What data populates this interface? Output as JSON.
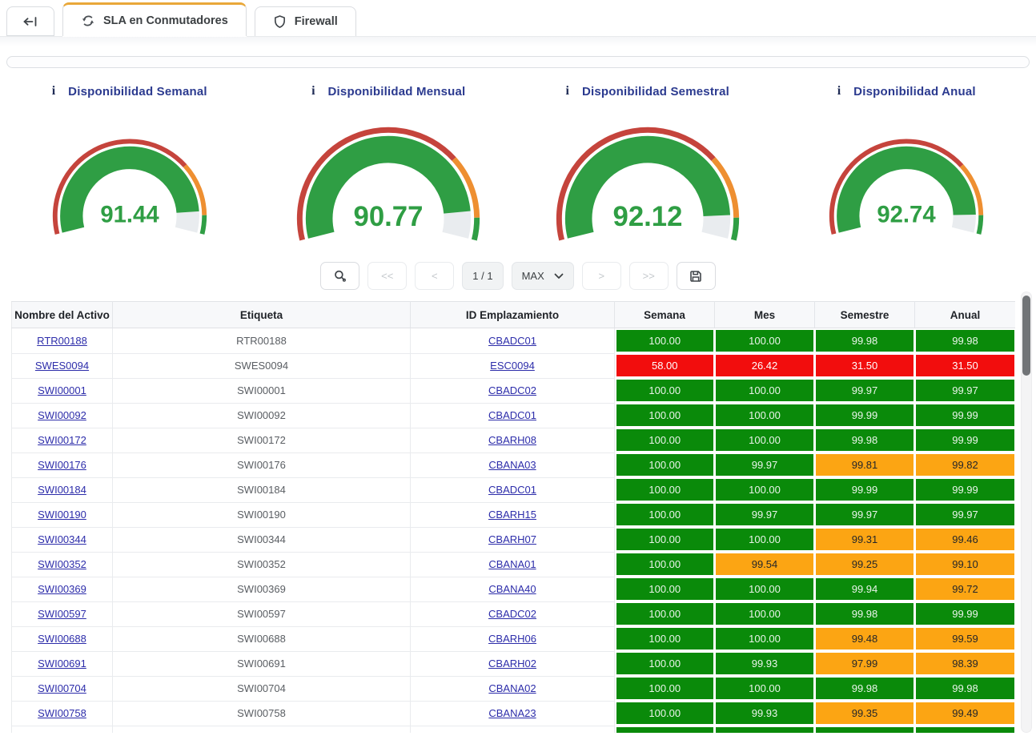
{
  "tabs": {
    "items": [
      {
        "label": "SLA en Conmutadores",
        "active": true
      },
      {
        "label": "Firewall",
        "active": false
      }
    ]
  },
  "icons": {
    "info_glyph": "i"
  },
  "colors": {
    "cell_green": "#0a8a0a",
    "cell_red": "#f20d0d",
    "cell_orange": "#fca513",
    "gauge_green": "#2f9e44",
    "gauge_red": "#c5443c",
    "gauge_orange": "#ee8f31",
    "gauge_rest": "#e9ecef",
    "tab_accent": "#e9a83a",
    "link": "#2d2daa",
    "title": "#2b3a8f"
  },
  "chart_data": [
    {
      "type": "gauge",
      "title": "Disponibilidad Semanal",
      "value": 91.44,
      "min": 0,
      "max": 100,
      "bands": [
        {
          "from": 0,
          "to": 73,
          "color": "#c5443c"
        },
        {
          "from": 73,
          "to": 93,
          "color": "#ee8f31"
        },
        {
          "from": 93,
          "to": 100,
          "color": "#2f9e44"
        }
      ]
    },
    {
      "type": "gauge",
      "title": "Disponibilidad Mensual",
      "value": 90.77,
      "min": 0,
      "max": 100,
      "bands": [
        {
          "from": 0,
          "to": 73,
          "color": "#c5443c"
        },
        {
          "from": 73,
          "to": 93,
          "color": "#ee8f31"
        },
        {
          "from": 93,
          "to": 100,
          "color": "#2f9e44"
        }
      ]
    },
    {
      "type": "gauge",
      "title": "Disponibilidad Semestral",
      "value": 92.12,
      "min": 0,
      "max": 100,
      "bands": [
        {
          "from": 0,
          "to": 73,
          "color": "#c5443c"
        },
        {
          "from": 73,
          "to": 93,
          "color": "#ee8f31"
        },
        {
          "from": 93,
          "to": 100,
          "color": "#2f9e44"
        }
      ]
    },
    {
      "type": "gauge",
      "title": "Disponibilidad Anual",
      "value": 92.74,
      "min": 0,
      "max": 100,
      "bands": [
        {
          "from": 0,
          "to": 73,
          "color": "#c5443c"
        },
        {
          "from": 73,
          "to": 93,
          "color": "#ee8f31"
        },
        {
          "from": 93,
          "to": 100,
          "color": "#2f9e44"
        }
      ]
    }
  ],
  "toolbar": {
    "first": "<<",
    "prev": "<",
    "page": "1 / 1",
    "page_size": "MAX",
    "next": ">",
    "last": ">>"
  },
  "table": {
    "headers": [
      "Nombre del Activo",
      "Etiqueta",
      "ID Emplazamiento",
      "Semana",
      "Mes",
      "Semestre",
      "Anual"
    ],
    "rows": [
      {
        "name": "RTR00188",
        "etiqueta": "RTR00188",
        "site": "CBADC01",
        "cells": [
          {
            "v": "100.00",
            "c": "green"
          },
          {
            "v": "100.00",
            "c": "green"
          },
          {
            "v": "99.98",
            "c": "green"
          },
          {
            "v": "99.98",
            "c": "green"
          }
        ]
      },
      {
        "name": "SWES0094",
        "etiqueta": "SWES0094",
        "site": "ESC0094",
        "cells": [
          {
            "v": "58.00",
            "c": "red"
          },
          {
            "v": "26.42",
            "c": "red"
          },
          {
            "v": "31.50",
            "c": "red"
          },
          {
            "v": "31.50",
            "c": "red"
          }
        ]
      },
      {
        "name": "SWI00001",
        "etiqueta": "SWI00001",
        "site": "CBADC02",
        "cells": [
          {
            "v": "100.00",
            "c": "green"
          },
          {
            "v": "100.00",
            "c": "green"
          },
          {
            "v": "99.97",
            "c": "green"
          },
          {
            "v": "99.97",
            "c": "green"
          }
        ]
      },
      {
        "name": "SWI00092",
        "etiqueta": "SWI00092",
        "site": "CBADC01",
        "cells": [
          {
            "v": "100.00",
            "c": "green"
          },
          {
            "v": "100.00",
            "c": "green"
          },
          {
            "v": "99.99",
            "c": "green"
          },
          {
            "v": "99.99",
            "c": "green"
          }
        ]
      },
      {
        "name": "SWI00172",
        "etiqueta": "SWI00172",
        "site": "CBARH08",
        "cells": [
          {
            "v": "100.00",
            "c": "green"
          },
          {
            "v": "100.00",
            "c": "green"
          },
          {
            "v": "99.98",
            "c": "green"
          },
          {
            "v": "99.99",
            "c": "green"
          }
        ]
      },
      {
        "name": "SWI00176",
        "etiqueta": "SWI00176",
        "site": "CBANA03",
        "cells": [
          {
            "v": "100.00",
            "c": "green"
          },
          {
            "v": "99.97",
            "c": "green"
          },
          {
            "v": "99.81",
            "c": "orange"
          },
          {
            "v": "99.82",
            "c": "orange"
          }
        ]
      },
      {
        "name": "SWI00184",
        "etiqueta": "SWI00184",
        "site": "CBADC01",
        "cells": [
          {
            "v": "100.00",
            "c": "green"
          },
          {
            "v": "100.00",
            "c": "green"
          },
          {
            "v": "99.99",
            "c": "green"
          },
          {
            "v": "99.99",
            "c": "green"
          }
        ]
      },
      {
        "name": "SWI00190",
        "etiqueta": "SWI00190",
        "site": "CBARH15",
        "cells": [
          {
            "v": "100.00",
            "c": "green"
          },
          {
            "v": "99.97",
            "c": "green"
          },
          {
            "v": "99.97",
            "c": "green"
          },
          {
            "v": "99.97",
            "c": "green"
          }
        ]
      },
      {
        "name": "SWI00344",
        "etiqueta": "SWI00344",
        "site": "CBARH07",
        "cells": [
          {
            "v": "100.00",
            "c": "green"
          },
          {
            "v": "100.00",
            "c": "green"
          },
          {
            "v": "99.31",
            "c": "orange"
          },
          {
            "v": "99.46",
            "c": "orange"
          }
        ]
      },
      {
        "name": "SWI00352",
        "etiqueta": "SWI00352",
        "site": "CBANA01",
        "cells": [
          {
            "v": "100.00",
            "c": "green"
          },
          {
            "v": "99.54",
            "c": "orange"
          },
          {
            "v": "99.25",
            "c": "orange"
          },
          {
            "v": "99.10",
            "c": "orange"
          }
        ]
      },
      {
        "name": "SWI00369",
        "etiqueta": "SWI00369",
        "site": "CBANA40",
        "cells": [
          {
            "v": "100.00",
            "c": "green"
          },
          {
            "v": "100.00",
            "c": "green"
          },
          {
            "v": "99.94",
            "c": "green"
          },
          {
            "v": "99.72",
            "c": "orange"
          }
        ]
      },
      {
        "name": "SWI00597",
        "etiqueta": "SWI00597",
        "site": "CBADC02",
        "cells": [
          {
            "v": "100.00",
            "c": "green"
          },
          {
            "v": "100.00",
            "c": "green"
          },
          {
            "v": "99.98",
            "c": "green"
          },
          {
            "v": "99.99",
            "c": "green"
          }
        ]
      },
      {
        "name": "SWI00688",
        "etiqueta": "SWI00688",
        "site": "CBARH06",
        "cells": [
          {
            "v": "100.00",
            "c": "green"
          },
          {
            "v": "100.00",
            "c": "green"
          },
          {
            "v": "99.48",
            "c": "orange"
          },
          {
            "v": "99.59",
            "c": "orange"
          }
        ]
      },
      {
        "name": "SWI00691",
        "etiqueta": "SWI00691",
        "site": "CBARH02",
        "cells": [
          {
            "v": "100.00",
            "c": "green"
          },
          {
            "v": "99.93",
            "c": "green"
          },
          {
            "v": "97.99",
            "c": "orange"
          },
          {
            "v": "98.39",
            "c": "orange"
          }
        ]
      },
      {
        "name": "SWI00704",
        "etiqueta": "SWI00704",
        "site": "CBANA02",
        "cells": [
          {
            "v": "100.00",
            "c": "green"
          },
          {
            "v": "100.00",
            "c": "green"
          },
          {
            "v": "99.98",
            "c": "green"
          },
          {
            "v": "99.98",
            "c": "green"
          }
        ]
      },
      {
        "name": "SWI00758",
        "etiqueta": "SWI00758",
        "site": "CBANA23",
        "cells": [
          {
            "v": "100.00",
            "c": "green"
          },
          {
            "v": "99.93",
            "c": "green"
          },
          {
            "v": "99.35",
            "c": "orange"
          },
          {
            "v": "99.49",
            "c": "orange"
          }
        ]
      }
    ],
    "partial_row_colors": [
      "green",
      "green",
      "green",
      "green"
    ]
  }
}
